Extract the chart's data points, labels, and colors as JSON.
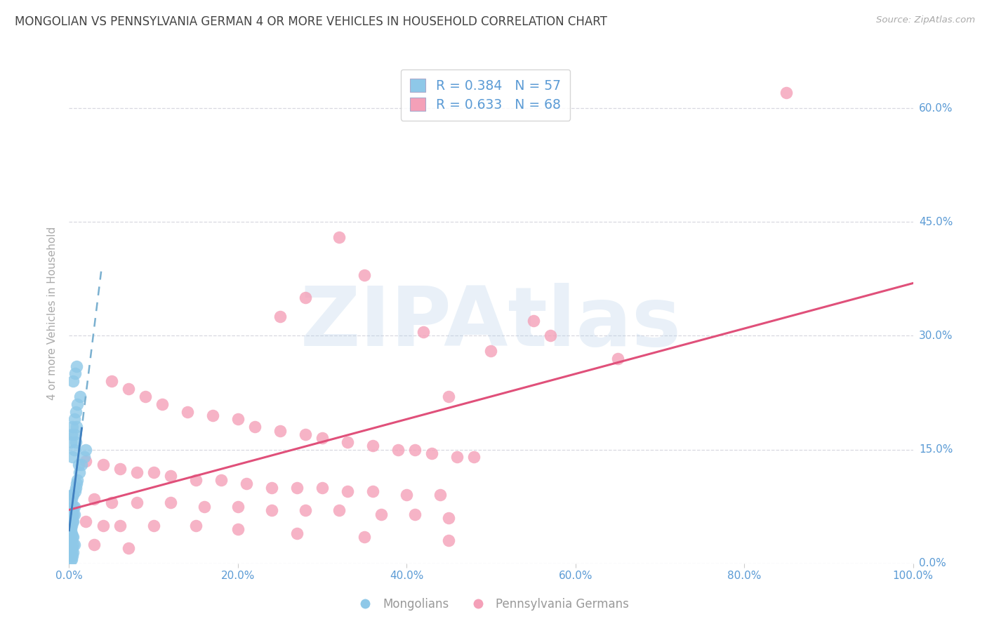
{
  "title": "MONGOLIAN VS PENNSYLVANIA GERMAN 4 OR MORE VEHICLES IN HOUSEHOLD CORRELATION CHART",
  "source": "Source: ZipAtlas.com",
  "ylabel": "4 or more Vehicles in Household",
  "xlim": [
    0.0,
    100.0
  ],
  "ylim": [
    0.0,
    66.0
  ],
  "yticks": [
    0.0,
    15.0,
    30.0,
    45.0,
    60.0
  ],
  "xticks": [
    0.0,
    20.0,
    40.0,
    60.0,
    80.0,
    100.0
  ],
  "xtick_labels": [
    "0.0%",
    "20.0%",
    "40.0%",
    "60.0%",
    "80.0%",
    "100.0%"
  ],
  "ytick_labels_right": [
    "0.0%",
    "15.0%",
    "30.0%",
    "45.0%",
    "60.0%"
  ],
  "mongolian_color": "#8ec8e8",
  "penn_german_color": "#f4a0b8",
  "mongolian_line_color": "#7ab0d0",
  "penn_line_color": "#e0507a",
  "mongolian_R": 0.384,
  "mongolian_N": 57,
  "penn_german_R": 0.633,
  "penn_german_N": 68,
  "watermark": "ZIPAtlas",
  "watermark_color": "#b0cce8",
  "title_fontsize": 12,
  "axis_tick_color": "#5b9bd5",
  "grid_color": "#d8d8e0",
  "background_color": "#ffffff",
  "mong_x": [
    0.2,
    0.3,
    0.2,
    0.4,
    0.3,
    0.5,
    0.3,
    0.4,
    0.5,
    0.6,
    0.2,
    0.3,
    0.4,
    0.5,
    0.2,
    0.3,
    0.2,
    0.2,
    0.3,
    0.4,
    0.5,
    0.3,
    0.4,
    0.5,
    0.6,
    0.3,
    0.4,
    0.5,
    0.6,
    0.2,
    0.3,
    0.4,
    0.5,
    0.7,
    0.8,
    0.9,
    1.0,
    1.2,
    1.5,
    1.8,
    2.0,
    0.2,
    0.3,
    0.4,
    0.6,
    0.8,
    1.0,
    1.3,
    0.5,
    0.7,
    0.9,
    1.1,
    0.4,
    0.6,
    0.8,
    0.6,
    0.9
  ],
  "mong_y": [
    0.5,
    0.5,
    1.0,
    1.0,
    1.5,
    1.5,
    2.0,
    2.0,
    2.5,
    2.5,
    3.0,
    3.0,
    3.5,
    3.5,
    4.0,
    4.0,
    4.5,
    5.0,
    5.0,
    5.5,
    5.5,
    6.0,
    6.0,
    6.5,
    6.5,
    7.0,
    7.0,
    7.5,
    7.5,
    8.0,
    8.5,
    9.0,
    9.0,
    9.5,
    10.0,
    10.5,
    11.0,
    12.0,
    13.0,
    14.0,
    15.0,
    16.0,
    17.0,
    18.0,
    19.0,
    20.0,
    21.0,
    22.0,
    24.0,
    25.0,
    26.0,
    13.0,
    14.0,
    15.0,
    16.0,
    17.0,
    18.0
  ],
  "penn_x": [
    85.0,
    32.0,
    35.0,
    28.0,
    25.0,
    55.0,
    42.0,
    57.0,
    50.0,
    65.0,
    5.0,
    7.0,
    9.0,
    11.0,
    14.0,
    17.0,
    20.0,
    22.0,
    25.0,
    28.0,
    30.0,
    33.0,
    36.0,
    39.0,
    41.0,
    43.0,
    46.0,
    48.0,
    2.0,
    4.0,
    6.0,
    8.0,
    10.0,
    12.0,
    15.0,
    18.0,
    21.0,
    24.0,
    27.0,
    30.0,
    33.0,
    36.0,
    40.0,
    44.0,
    3.0,
    5.0,
    8.0,
    12.0,
    16.0,
    20.0,
    24.0,
    28.0,
    32.0,
    37.0,
    41.0,
    45.0,
    2.0,
    4.0,
    6.0,
    10.0,
    15.0,
    20.0,
    27.0,
    35.0,
    45.0,
    3.0,
    7.0,
    45.0
  ],
  "penn_y": [
    62.0,
    43.0,
    38.0,
    35.0,
    32.5,
    32.0,
    30.5,
    30.0,
    28.0,
    27.0,
    24.0,
    23.0,
    22.0,
    21.0,
    20.0,
    19.5,
    19.0,
    18.0,
    17.5,
    17.0,
    16.5,
    16.0,
    15.5,
    15.0,
    15.0,
    14.5,
    14.0,
    14.0,
    13.5,
    13.0,
    12.5,
    12.0,
    12.0,
    11.5,
    11.0,
    11.0,
    10.5,
    10.0,
    10.0,
    10.0,
    9.5,
    9.5,
    9.0,
    9.0,
    8.5,
    8.0,
    8.0,
    8.0,
    7.5,
    7.5,
    7.0,
    7.0,
    7.0,
    6.5,
    6.5,
    6.0,
    5.5,
    5.0,
    5.0,
    5.0,
    5.0,
    4.5,
    4.0,
    3.5,
    3.0,
    2.5,
    2.0,
    22.0
  ]
}
